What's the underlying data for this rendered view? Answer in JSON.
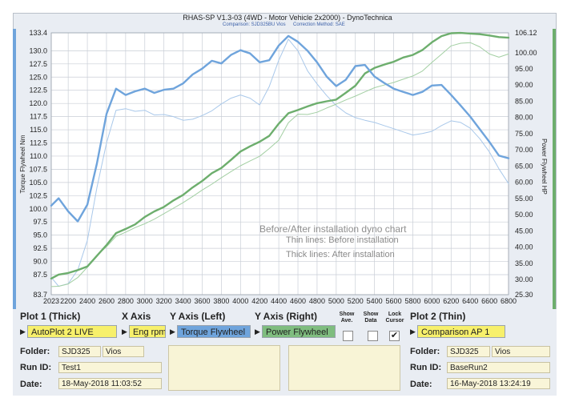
{
  "header": {
    "title": "RHAS-SP V1.3-03  (4WD - Motor Vehicle 2x2000) - DynoTechnica",
    "comparison": "Comparison: SJD325BU Vios",
    "correction": "Correction Method: SAE"
  },
  "chart_data": {
    "type": "line",
    "x": [
      2023,
      2100,
      2200,
      2300,
      2400,
      2500,
      2600,
      2700,
      2800,
      2900,
      3000,
      3100,
      3200,
      3300,
      3400,
      3500,
      3600,
      3700,
      3800,
      3900,
      4000,
      4100,
      4200,
      4300,
      4400,
      4500,
      4600,
      4700,
      4800,
      4900,
      5000,
      5100,
      5200,
      5300,
      5400,
      5500,
      5600,
      5700,
      5800,
      5900,
      6000,
      6100,
      6200,
      6300,
      6400,
      6500,
      6600,
      6700,
      6800
    ],
    "x_ticks": [
      "2023",
      "2200",
      "2400",
      "2600",
      "2800",
      "3000",
      "3200",
      "3400",
      "3600",
      "3800",
      "4000",
      "4200",
      "4400",
      "4600",
      "4800",
      "5000",
      "5200",
      "5400",
      "5600",
      "5800",
      "6000",
      "6200",
      "6400",
      "6600",
      "6800"
    ],
    "y_left_ticks": [
      "133.4",
      "130.0",
      "127.5",
      "125.0",
      "122.5",
      "120.0",
      "117.5",
      "115.0",
      "112.5",
      "110.0",
      "107.5",
      "105.0",
      "102.5",
      "100.0",
      "97.5",
      "95.0",
      "92.5",
      "90.0",
      "87.5",
      "83.7"
    ],
    "y_right_ticks": [
      "106.12",
      "100.00",
      "95.00",
      "90.00",
      "85.00",
      "80.00",
      "75.00",
      "70.00",
      "65.00",
      "60.00",
      "55.00",
      "50.00",
      "45.00",
      "40.00",
      "35.00",
      "30.00",
      "25.30"
    ],
    "xlim": [
      2023,
      6800
    ],
    "ylim_left": [
      83.7,
      133.4
    ],
    "ylim_right": [
      25.3,
      106.12
    ],
    "ylabel_left": "Torque Flywheel Nm",
    "ylabel_right": "Power Flywheel HP",
    "series": [
      {
        "name": "",
        "axis": "left",
        "style": "thick",
        "color": "#6fa4dc",
        "values": [
          100.6,
          102.0,
          99.5,
          97.6,
          100.8,
          108.6,
          118.0,
          122.8,
          121.6,
          122.3,
          122.8,
          122.0,
          122.6,
          122.8,
          123.8,
          125.5,
          126.6,
          128.1,
          127.6,
          129.2,
          130.1,
          129.5,
          127.8,
          128.2,
          131.0,
          132.8,
          131.7,
          130.0,
          127.8,
          125.1,
          123.3,
          124.5,
          127.1,
          127.3,
          125.1,
          123.9,
          122.8,
          122.2,
          121.6,
          122.2,
          123.4,
          123.5,
          121.6,
          119.6,
          117.5,
          115.1,
          112.7,
          110.1,
          109.6
        ]
      },
      {
        "name": "",
        "axis": "left",
        "style": "thin",
        "color": "#a9c8ea",
        "values": [
          87.0,
          85.3,
          85.8,
          88.4,
          94.0,
          104.0,
          112.5,
          118.7,
          119.0,
          118.5,
          118.7,
          117.8,
          117.9,
          117.5,
          116.8,
          117.0,
          117.7,
          118.6,
          119.9,
          121.0,
          121.6,
          121.0,
          119.7,
          123.2,
          128.2,
          132.2,
          130.0,
          126.2,
          123.7,
          121.5,
          119.6,
          118.2,
          117.3,
          116.8,
          116.4,
          115.8,
          115.2,
          114.6,
          114.0,
          114.3,
          114.7,
          115.8,
          116.7,
          116.4,
          115.3,
          113.3,
          110.8,
          107.6,
          104.8
        ]
      },
      {
        "name": "",
        "axis": "right",
        "style": "thick",
        "color": "#6dae6d",
        "values": [
          30.3,
          31.5,
          32.0,
          32.9,
          34.0,
          37.3,
          40.6,
          44.3,
          45.6,
          47.0,
          49.3,
          51.0,
          52.4,
          54.4,
          56.1,
          58.4,
          60.4,
          62.8,
          64.4,
          66.9,
          69.5,
          71.1,
          72.5,
          74.3,
          78.1,
          81.3,
          82.3,
          83.4,
          84.4,
          85.0,
          85.5,
          87.6,
          89.8,
          93.6,
          95.3,
          96.3,
          97.2,
          98.5,
          99.3,
          100.8,
          103.2,
          105.1,
          106.0,
          106.1,
          105.9,
          105.7,
          105.3,
          104.8,
          104.6
        ]
      },
      {
        "name": "",
        "axis": "right",
        "style": "thin",
        "color": "#a3cfa3",
        "values": [
          27.8,
          27.9,
          28.6,
          30.6,
          33.8,
          37.4,
          40.1,
          43.3,
          44.6,
          46.0,
          47.2,
          48.6,
          50.3,
          52.0,
          53.7,
          55.6,
          57.6,
          59.4,
          61.4,
          63.3,
          65.1,
          66.6,
          68.0,
          70.4,
          73.0,
          78.4,
          81.0,
          80.9,
          81.6,
          82.9,
          84.1,
          85.4,
          86.6,
          87.9,
          89.2,
          90.0,
          90.8,
          91.8,
          92.8,
          94.3,
          97.0,
          99.5,
          102.1,
          102.9,
          103.1,
          101.8,
          99.6,
          98.6,
          99.6
        ]
      }
    ],
    "annotations": [
      "Before/After installation dyno chart",
      "Thin lines: Before installation",
      "Thick lines: After installation"
    ]
  },
  "panel": {
    "plot1_header": "Plot 1 (Thick)",
    "plot1_value": "AutoPlot 2 LIVE",
    "xaxis_header": "X Axis",
    "xaxis_value": "Eng rpm",
    "yleft_header": "Y Axis (Left)",
    "yleft_value": "Torque Flywheel",
    "yright_header": "Y Axis (Right)",
    "yright_value": "Power Flywheel",
    "show_ave_line1": "Show",
    "show_ave_line2": "Ave.",
    "show_data_line1": "Show",
    "show_data_line2": "Data",
    "lock_cursor_line1": "Lock",
    "lock_cursor_line2": "Cursor",
    "lock_cursor_checked": true,
    "check_mark": "✔",
    "plot2_header": "Plot 2 (Thin)",
    "plot2_value": "Comparison AP 1",
    "folder_label": "Folder:",
    "runid_label": "Run ID:",
    "date_label": "Date:",
    "left_folder_code": "SJD325",
    "left_folder_name": "Vios",
    "left_runid": "Test1",
    "left_date": "18-May-2018  11:03:52",
    "right_folder_code": "SJD325",
    "right_folder_name": "Vios",
    "right_runid": "BaseRun2",
    "right_date": "16-May-2018  13:24:19"
  }
}
